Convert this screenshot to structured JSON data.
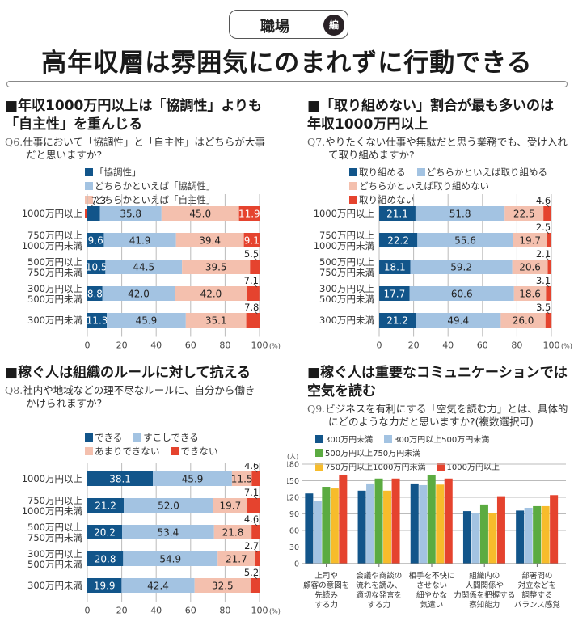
{
  "header": {
    "badge_label": "職場",
    "badge_suffix": "編",
    "title": "高年収層は雰囲気にのまれずに行動できる"
  },
  "colors": {
    "navy": "#12558a",
    "light_blue": "#a3c3e2",
    "salmon": "#f4c0ae",
    "red": "#e5432e",
    "green": "#5bab41",
    "yellow": "#f7bc2b"
  },
  "sections": [
    {
      "title_line1": "■年収1000万円以上は「協調性」よりも",
      "title_line2": "「自主性」を重んじる",
      "q_num": "Q6.",
      "question_line1": "仕事において「協調性」と「自主性」はどちらが大事",
      "question_line2": "だと思いますか?"
    },
    {
      "title_line1": "■「取り組めない」割合が最も多いのは",
      "title_line2": "年収1000万円以上",
      "q_num": "Q7.",
      "question_line1": "やりたくない仕事や無駄だと思う業務でも、受け入れ",
      "question_line2": "て取り組めますか?"
    },
    {
      "title_line1": "■稼ぐ人は組織のルールに対して抗える",
      "title_line2": "",
      "q_num": "Q8.",
      "question_line1": "社内や地域などの理不尽なルールに、自分から働き",
      "question_line2": "かけられますか?"
    },
    {
      "title_line1": "■稼ぐ人は重要なコミュニケーションでは",
      "title_line2": "空気を読む",
      "q_num": "Q9.",
      "question_line1": "ビジネスを有利にする「空気を読む力」とは、具体的",
      "question_line2": "にどのような力だと思いますか?(複数選択可)"
    }
  ],
  "chart_data": [
    {
      "type": "bar",
      "orientation": "horizontal-stacked-100",
      "title": "Q6",
      "categories": [
        [
          "1000万円以上"
        ],
        [
          "750万円以上",
          "1000万円未満"
        ],
        [
          "500万円以上",
          "750万円未満"
        ],
        [
          "300万円以上",
          "500万円未満"
        ],
        [
          "300万円未満"
        ]
      ],
      "series": [
        {
          "name": "「協調性」",
          "color": "#12558a",
          "values": [
            7.3,
            9.6,
            10.5,
            8.8,
            11.3
          ]
        },
        {
          "name": "どちらかといえば「協調性」",
          "color": "#a3c3e2",
          "values": [
            35.8,
            41.9,
            44.5,
            42.0,
            45.9
          ]
        },
        {
          "name": "どちらかといえば「自主性」",
          "color": "#f4c0ae",
          "values": [
            45.0,
            39.4,
            39.5,
            42.0,
            35.1
          ]
        },
        {
          "name": "「自主性」",
          "color": "#e5432e",
          "values": [
            11.9,
            9.1,
            5.5,
            7.1,
            7.8
          ]
        }
      ],
      "labels": [
        [
          "7.3",
          "35.8",
          "45.0",
          "11.9"
        ],
        [
          "9.6",
          "41.9",
          "39.4",
          "9.1"
        ],
        [
          "10.5",
          "44.5",
          "39.5",
          "5.5"
        ],
        [
          "8.8",
          "42.0",
          "42.0",
          "7.1"
        ],
        [
          "11.3",
          "45.9",
          "35.1",
          "7.8"
        ]
      ],
      "xticks": [
        "0",
        "20",
        "40",
        "60",
        "80",
        "100"
      ],
      "xunit": "(%)",
      "xlim": [
        0,
        100
      ],
      "grid": true,
      "legend": "top"
    },
    {
      "type": "bar",
      "orientation": "horizontal-stacked-100",
      "title": "Q7",
      "categories": [
        [
          "1000万円以上"
        ],
        [
          "750万円以上",
          "1000万円未満"
        ],
        [
          "500万円以上",
          "750万円未満"
        ],
        [
          "300万円以上",
          "500万円未満"
        ],
        [
          "300万円未満"
        ]
      ],
      "series": [
        {
          "name": "取り組める",
          "color": "#12558a",
          "values": [
            21.1,
            22.2,
            18.1,
            17.7,
            21.2
          ]
        },
        {
          "name": "どちらかといえば取り組める",
          "color": "#a3c3e2",
          "values": [
            51.8,
            55.6,
            59.2,
            60.6,
            49.4
          ]
        },
        {
          "name": "どちらかといえば取り組めない",
          "color": "#f4c0ae",
          "values": [
            22.5,
            19.7,
            20.6,
            18.6,
            26.0
          ]
        },
        {
          "name": "取り組めない",
          "color": "#e5432e",
          "values": [
            4.6,
            2.5,
            2.1,
            3.1,
            3.5
          ]
        }
      ],
      "labels": [
        [
          "21.1",
          "51.8",
          "22.5",
          "4.6"
        ],
        [
          "22.2",
          "55.6",
          "19.7",
          "2.5"
        ],
        [
          "18.1",
          "59.2",
          "20.6",
          "2.1"
        ],
        [
          "17.7",
          "60.6",
          "18.6",
          "3.1"
        ],
        [
          "21.2",
          "49.4",
          "26.0",
          "3.5"
        ]
      ],
      "xticks": [
        "0",
        "20",
        "40",
        "60",
        "80",
        "100"
      ],
      "xunit": "(%)",
      "xlim": [
        0,
        100
      ],
      "grid": true,
      "legend": "top"
    },
    {
      "type": "bar",
      "orientation": "horizontal-stacked-100",
      "title": "Q8",
      "categories": [
        [
          "1000万円以上"
        ],
        [
          "750万円以上",
          "1000万円未満"
        ],
        [
          "500万円以上",
          "750万円未満"
        ],
        [
          "300万円以上",
          "500万円未満"
        ],
        [
          "300万円未満"
        ]
      ],
      "series": [
        {
          "name": "できる",
          "color": "#12558a",
          "values": [
            38.1,
            21.2,
            20.2,
            20.8,
            19.9
          ]
        },
        {
          "name": "すこしできる",
          "color": "#a3c3e2",
          "values": [
            45.9,
            52.0,
            53.4,
            54.9,
            42.4
          ]
        },
        {
          "name": "あまりできない",
          "color": "#f4c0ae",
          "values": [
            11.5,
            19.7,
            21.8,
            21.7,
            32.5
          ]
        },
        {
          "name": "できない",
          "color": "#e5432e",
          "values": [
            4.6,
            7.1,
            4.6,
            2.7,
            5.2
          ]
        }
      ],
      "labels": [
        [
          "38.1",
          "45.9",
          "11.5",
          "4.6"
        ],
        [
          "21.2",
          "52.0",
          "19.7",
          "7.1"
        ],
        [
          "20.2",
          "53.4",
          "21.8",
          "4.6"
        ],
        [
          "20.8",
          "54.9",
          "21.7",
          "2.7"
        ],
        [
          "19.9",
          "42.4",
          "32.5",
          "5.2"
        ]
      ],
      "xticks": [
        "0",
        "20",
        "40",
        "60",
        "80",
        "100"
      ],
      "xunit": "(%)",
      "xlim": [
        0,
        100
      ],
      "grid": true,
      "legend": "top"
    },
    {
      "type": "bar",
      "orientation": "vertical-grouped",
      "title": "Q9",
      "ylabel": "(人)",
      "ylim": [
        0,
        180
      ],
      "yticks": [
        "0",
        "30",
        "60",
        "90",
        "120",
        "150",
        "180"
      ],
      "categories": [
        [
          "上司や",
          "顧客の意図を",
          "先読み",
          "する力"
        ],
        [
          "会議や商談の",
          "流れを読み、",
          "適切な発言を",
          "する力"
        ],
        [
          "相手を不快に",
          "させない",
          "細やかな",
          "気遣い"
        ],
        [
          "組織内の",
          "人間関係や",
          "力関係を把握する",
          "察知能力"
        ],
        [
          "部署間の",
          "対立などを",
          "調整する",
          "バランス感覚"
        ]
      ],
      "series": [
        {
          "name": "300万円未満",
          "color": "#12558a",
          "values": [
            127,
            132,
            145,
            95,
            96
          ]
        },
        {
          "name": "300万円以上500万円未満",
          "color": "#a3c3e2",
          "values": [
            113,
            145,
            142,
            91,
            101
          ]
        },
        {
          "name": "500万円以上750万円未満",
          "color": "#5bab41",
          "values": [
            139,
            154,
            161,
            107,
            104
          ]
        },
        {
          "name": "750万円以上1000万円未満",
          "color": "#f7bc2b",
          "values": [
            136,
            132,
            143,
            92,
            104
          ]
        },
        {
          "name": "1000万円以上",
          "color": "#e5432e",
          "values": [
            161,
            154,
            154,
            122,
            124
          ]
        }
      ],
      "grid": true,
      "legend": "top"
    }
  ]
}
